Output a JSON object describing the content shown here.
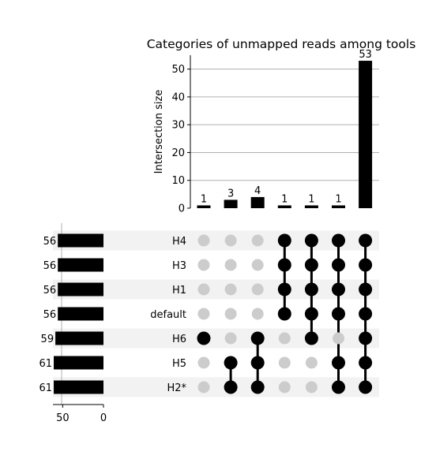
{
  "chart_data": {
    "type": "upset",
    "title": "Categories of unmapped reads among tools",
    "intersection_ylabel": "Intersection size",
    "intersection_ylim": [
      0,
      55
    ],
    "intersection_yticks": [
      0,
      10,
      20,
      30,
      40,
      50
    ],
    "intersections": [
      {
        "sets": [
          "H6"
        ],
        "size": 1
      },
      {
        "sets": [
          "H5",
          "H2*"
        ],
        "size": 3
      },
      {
        "sets": [
          "H6",
          "H5",
          "H2*"
        ],
        "size": 4
      },
      {
        "sets": [
          "H4",
          "H3",
          "H1",
          "default"
        ],
        "size": 1
      },
      {
        "sets": [
          "H4",
          "H3",
          "H1",
          "default",
          "H6"
        ],
        "size": 1
      },
      {
        "sets": [
          "H4",
          "H3",
          "H1",
          "default",
          "H5",
          "H2*"
        ],
        "size": 1
      },
      {
        "sets": [
          "H4",
          "H3",
          "H1",
          "default",
          "H6",
          "H5",
          "H2*"
        ],
        "size": 53
      }
    ],
    "sets": [
      {
        "name": "H4",
        "size": 56
      },
      {
        "name": "H3",
        "size": 56
      },
      {
        "name": "H1",
        "size": 56
      },
      {
        "name": "default",
        "size": 56
      },
      {
        "name": "H6",
        "size": 59
      },
      {
        "name": "H5",
        "size": 61
      },
      {
        "name": "H2*",
        "size": 61
      }
    ],
    "set_size_xticks": [
      50,
      0
    ],
    "set_size_xlim": [
      0,
      62
    ],
    "grid": true,
    "colors": {
      "bar": "#000000",
      "dot_active": "#000000",
      "dot_inactive": "#cccccc",
      "stripe": "#f2f2f2",
      "grid": "#b0b0b0"
    }
  }
}
